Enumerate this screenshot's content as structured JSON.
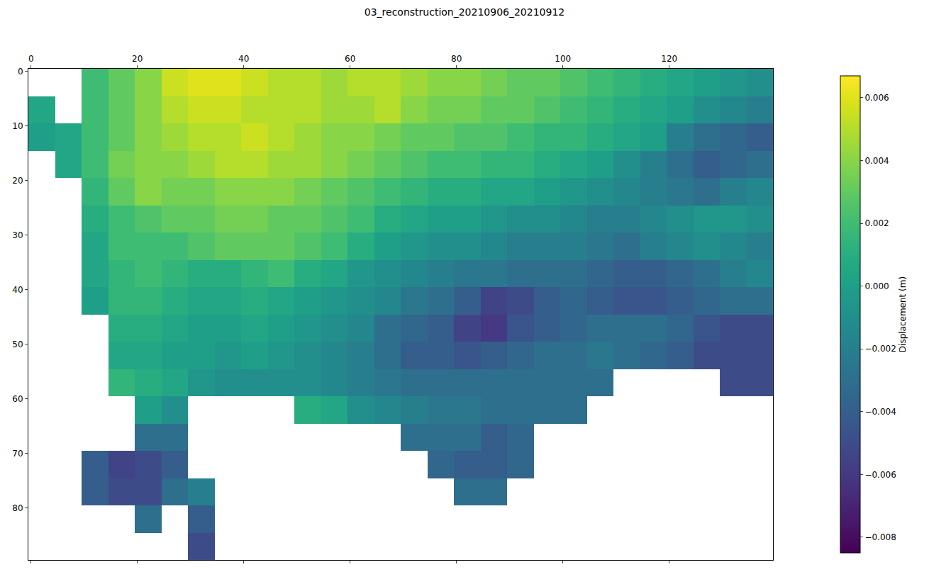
{
  "chart_data": {
    "type": "heatmap",
    "title": "03_reconstruction_20210906_20210912",
    "color": "Viridis",
    "grid": false,
    "x": [
      2,
      7,
      12,
      17,
      22,
      27,
      32,
      37,
      42,
      47,
      52,
      57,
      62,
      67,
      72,
      77,
      82,
      87,
      92,
      97,
      102,
      107,
      112,
      117,
      122,
      127,
      132,
      137
    ],
    "y": [
      2,
      7,
      12,
      17,
      22,
      27,
      32,
      37,
      42,
      47,
      52,
      57,
      62,
      67,
      72,
      77,
      82,
      87
    ],
    "xlim": [
      -0.5,
      139.5
    ],
    "ylim": [
      89.5,
      -0.5
    ],
    "xticks": [
      0,
      20,
      40,
      60,
      80,
      100,
      120
    ],
    "yticks": [
      0,
      10,
      20,
      30,
      40,
      50,
      60,
      70,
      80
    ],
    "z": [
      [
        null,
        null,
        0.002,
        0.003,
        0.004,
        0.0055,
        0.006,
        0.006,
        0.0055,
        0.005,
        0.005,
        0.0045,
        0.005,
        0.005,
        0.0045,
        0.004,
        0.004,
        0.0035,
        0.003,
        0.003,
        0.0025,
        0.002,
        0.0015,
        0.001,
        0.0005,
        0.0,
        -0.0005,
        -0.001
      ],
      [
        0.0005,
        null,
        0.002,
        0.003,
        0.004,
        0.005,
        0.0055,
        0.0055,
        0.005,
        0.005,
        0.005,
        0.0045,
        0.0045,
        0.005,
        0.004,
        0.0035,
        0.0035,
        0.003,
        0.003,
        0.0025,
        0.002,
        0.0015,
        0.001,
        0.0005,
        0.0,
        -0.001,
        -0.0015,
        -0.002
      ],
      [
        0.0,
        0.0005,
        0.002,
        0.003,
        0.004,
        0.0045,
        0.005,
        0.005,
        0.0055,
        0.005,
        0.0045,
        0.004,
        0.004,
        0.0035,
        0.003,
        0.003,
        0.0025,
        0.0025,
        0.002,
        0.0015,
        0.0015,
        0.001,
        0.0005,
        0.0,
        -0.002,
        -0.003,
        -0.0035,
        -0.004
      ],
      [
        null,
        0.0005,
        0.002,
        0.0035,
        0.004,
        0.004,
        0.0045,
        0.005,
        0.005,
        0.0045,
        0.0045,
        0.004,
        0.0035,
        0.003,
        0.0025,
        0.002,
        0.002,
        0.0015,
        0.0015,
        0.001,
        0.0005,
        0.0,
        -0.001,
        -0.002,
        -0.003,
        -0.004,
        -0.0035,
        -0.003
      ],
      [
        null,
        null,
        0.0015,
        0.003,
        0.004,
        0.0035,
        0.0035,
        0.004,
        0.004,
        0.004,
        0.0035,
        0.003,
        0.0025,
        0.002,
        0.0015,
        0.001,
        0.001,
        0.0005,
        0.0005,
        0.0,
        -0.0005,
        -0.001,
        -0.0015,
        -0.002,
        -0.0025,
        -0.003,
        -0.002,
        -0.0015
      ],
      [
        null,
        null,
        0.001,
        0.002,
        0.0025,
        0.003,
        0.003,
        0.0035,
        0.0035,
        0.003,
        0.003,
        0.0025,
        0.002,
        0.001,
        0.0005,
        0.0,
        0.0,
        -0.0005,
        -0.001,
        -0.001,
        -0.0015,
        -0.002,
        -0.002,
        -0.0015,
        -0.001,
        -0.0005,
        -0.0005,
        -0.001
      ],
      [
        null,
        null,
        0.0005,
        0.002,
        0.002,
        0.002,
        0.0025,
        0.003,
        0.003,
        0.003,
        0.0025,
        0.002,
        0.001,
        0.0,
        -0.0005,
        -0.001,
        -0.001,
        -0.0015,
        -0.002,
        -0.002,
        -0.002,
        -0.0025,
        -0.003,
        -0.002,
        -0.0015,
        -0.001,
        -0.0015,
        -0.002
      ],
      [
        null,
        null,
        0.0005,
        0.0015,
        0.002,
        0.0015,
        0.001,
        0.001,
        0.0015,
        0.002,
        0.001,
        0.0005,
        -0.0005,
        -0.001,
        -0.0015,
        -0.002,
        -0.0025,
        -0.0025,
        -0.003,
        -0.003,
        -0.003,
        -0.0035,
        -0.004,
        -0.004,
        -0.0035,
        -0.003,
        -0.002,
        -0.0015
      ],
      [
        null,
        null,
        0.0,
        0.0015,
        0.0015,
        0.001,
        0.0005,
        0.0005,
        0.001,
        0.0005,
        0.0,
        -0.0005,
        -0.001,
        -0.0015,
        -0.0025,
        -0.003,
        -0.004,
        -0.0055,
        -0.005,
        -0.004,
        -0.0035,
        -0.004,
        -0.0045,
        -0.0045,
        -0.004,
        -0.0035,
        -0.003,
        -0.003
      ],
      [
        null,
        null,
        null,
        0.001,
        0.001,
        0.0005,
        0.0,
        0.0,
        0.0005,
        0.0,
        -0.0005,
        -0.001,
        -0.0015,
        -0.003,
        -0.0035,
        -0.004,
        -0.0055,
        -0.006,
        -0.0045,
        -0.004,
        -0.0035,
        -0.003,
        -0.003,
        -0.003,
        -0.0035,
        -0.0045,
        -0.005,
        -0.005
      ],
      [
        null,
        null,
        null,
        0.0005,
        0.0005,
        0.0,
        0.0,
        -0.0005,
        0.0,
        -0.0005,
        -0.001,
        -0.0015,
        -0.002,
        -0.003,
        -0.004,
        -0.004,
        -0.0045,
        -0.004,
        -0.0035,
        -0.003,
        -0.003,
        -0.0025,
        -0.003,
        -0.0035,
        -0.004,
        -0.005,
        -0.005,
        -0.005
      ],
      [
        null,
        null,
        null,
        0.0015,
        0.001,
        0.0005,
        -0.0005,
        -0.001,
        -0.001,
        -0.001,
        -0.001,
        -0.0015,
        -0.002,
        -0.0025,
        -0.003,
        -0.003,
        -0.003,
        -0.003,
        -0.003,
        -0.003,
        -0.003,
        -0.003,
        null,
        null,
        null,
        null,
        -0.005,
        -0.005
      ],
      [
        null,
        null,
        null,
        null,
        0.0,
        -0.001,
        null,
        null,
        null,
        null,
        0.001,
        0.0005,
        -0.001,
        -0.0015,
        -0.002,
        -0.0025,
        -0.0025,
        -0.003,
        -0.003,
        -0.003,
        -0.003,
        null,
        null,
        null,
        null,
        null,
        null,
        null
      ],
      [
        null,
        null,
        null,
        null,
        -0.003,
        -0.003,
        null,
        null,
        null,
        null,
        null,
        null,
        null,
        null,
        -0.003,
        -0.003,
        -0.003,
        -0.004,
        -0.0035,
        null,
        null,
        null,
        null,
        null,
        null,
        null,
        null,
        null
      ],
      [
        null,
        null,
        -0.004,
        -0.0055,
        -0.005,
        -0.004,
        null,
        null,
        null,
        null,
        null,
        null,
        null,
        null,
        null,
        -0.0035,
        -0.004,
        -0.004,
        -0.0035,
        null,
        null,
        null,
        null,
        null,
        null,
        null,
        null,
        null
      ],
      [
        null,
        null,
        -0.004,
        -0.005,
        -0.005,
        -0.003,
        -0.002,
        null,
        null,
        null,
        null,
        null,
        null,
        null,
        null,
        null,
        -0.003,
        -0.003,
        null,
        null,
        null,
        null,
        null,
        null,
        null,
        null,
        null,
        null
      ],
      [
        null,
        null,
        null,
        null,
        -0.003,
        null,
        -0.004,
        null,
        null,
        null,
        null,
        null,
        null,
        null,
        null,
        null,
        null,
        null,
        null,
        null,
        null,
        null,
        null,
        null,
        null,
        null,
        null,
        null
      ],
      [
        null,
        null,
        null,
        null,
        null,
        null,
        -0.005,
        null,
        null,
        null,
        null,
        null,
        null,
        null,
        null,
        null,
        null,
        null,
        null,
        null,
        null,
        null,
        null,
        null,
        null,
        null,
        null,
        null
      ]
    ],
    "colorbar": {
      "label": "Displacement (m)",
      "zlim": [
        -0.0085,
        0.0067
      ],
      "ticks": [
        {
          "value": -0.008,
          "label": "−0.008"
        },
        {
          "value": -0.006,
          "label": "−0.006"
        },
        {
          "value": -0.004,
          "label": "−0.004"
        },
        {
          "value": -0.002,
          "label": "−0.002"
        },
        {
          "value": 0,
          "label": "0.000"
        },
        0.002,
        0.004,
        0.006
      ]
    }
  }
}
